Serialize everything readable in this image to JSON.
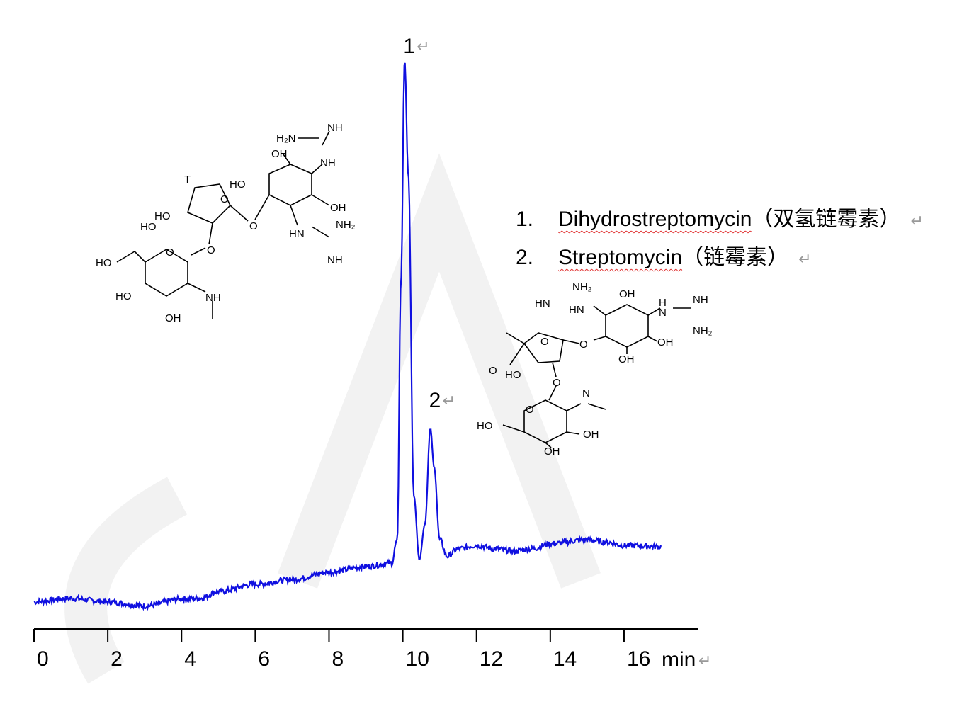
{
  "chart_data": {
    "type": "line",
    "title": "",
    "xlabel": "min",
    "ylabel": "",
    "xlim": [
      0,
      18
    ],
    "x_ticks": [
      "0",
      "2",
      "4",
      "6",
      "8",
      "10",
      "12",
      "14",
      "16"
    ],
    "grid": false,
    "y_axis_shown": false,
    "line_color": "#1010e0",
    "series": [
      {
        "x": [
          0,
          1,
          2,
          3,
          4,
          4.5,
          5,
          6,
          7,
          8,
          9,
          9.7,
          9.85,
          9.95,
          10.05,
          10.15,
          10.3,
          10.45,
          10.6,
          10.75,
          10.85,
          11.0,
          11.2,
          11.5,
          12,
          12.5,
          13,
          13.5,
          14,
          15,
          15.5,
          16,
          17
        ],
        "y": [
          5.0,
          5.6,
          5.0,
          4.3,
          5.5,
          5.6,
          6.8,
          8.1,
          8.9,
          10.2,
          11.2,
          11.8,
          16,
          61,
          100,
          80,
          23.6,
          12.4,
          18.6,
          35.4,
          28.6,
          16,
          13,
          14.3,
          14.9,
          14.3,
          13.9,
          14.3,
          15.2,
          15.9,
          15.5,
          14.9,
          14.7
        ]
      }
    ],
    "peak_labels": [
      {
        "label": "1",
        "x": 10.05
      },
      {
        "label": "2",
        "x": 10.75
      }
    ],
    "legend": [
      {
        "num": "1.",
        "name": "Dihydrostreptomycin",
        "cn": "（双氢链霉素）"
      },
      {
        "num": "2.",
        "name": "Streptomycin",
        "cn": "（链霉素）"
      }
    ]
  },
  "return_mark": "↵",
  "structures": {
    "dihydrostreptomycin": [
      "H2N",
      "NH",
      "OH",
      "NH",
      "HO",
      "T",
      "O",
      "HO",
      "HO",
      "OH",
      "O",
      "HN",
      "NH2",
      "NH",
      "O",
      "HO",
      "O",
      "HO",
      "NH",
      "OH"
    ],
    "streptomycin": [
      "NH2",
      "HN",
      "HN",
      "OH",
      "H",
      "N",
      "NH",
      "NH2",
      "O",
      "O",
      "OH",
      "O",
      "HO",
      "OH",
      "O",
      "N",
      "HO",
      "O",
      "OH",
      "OH"
    ]
  }
}
